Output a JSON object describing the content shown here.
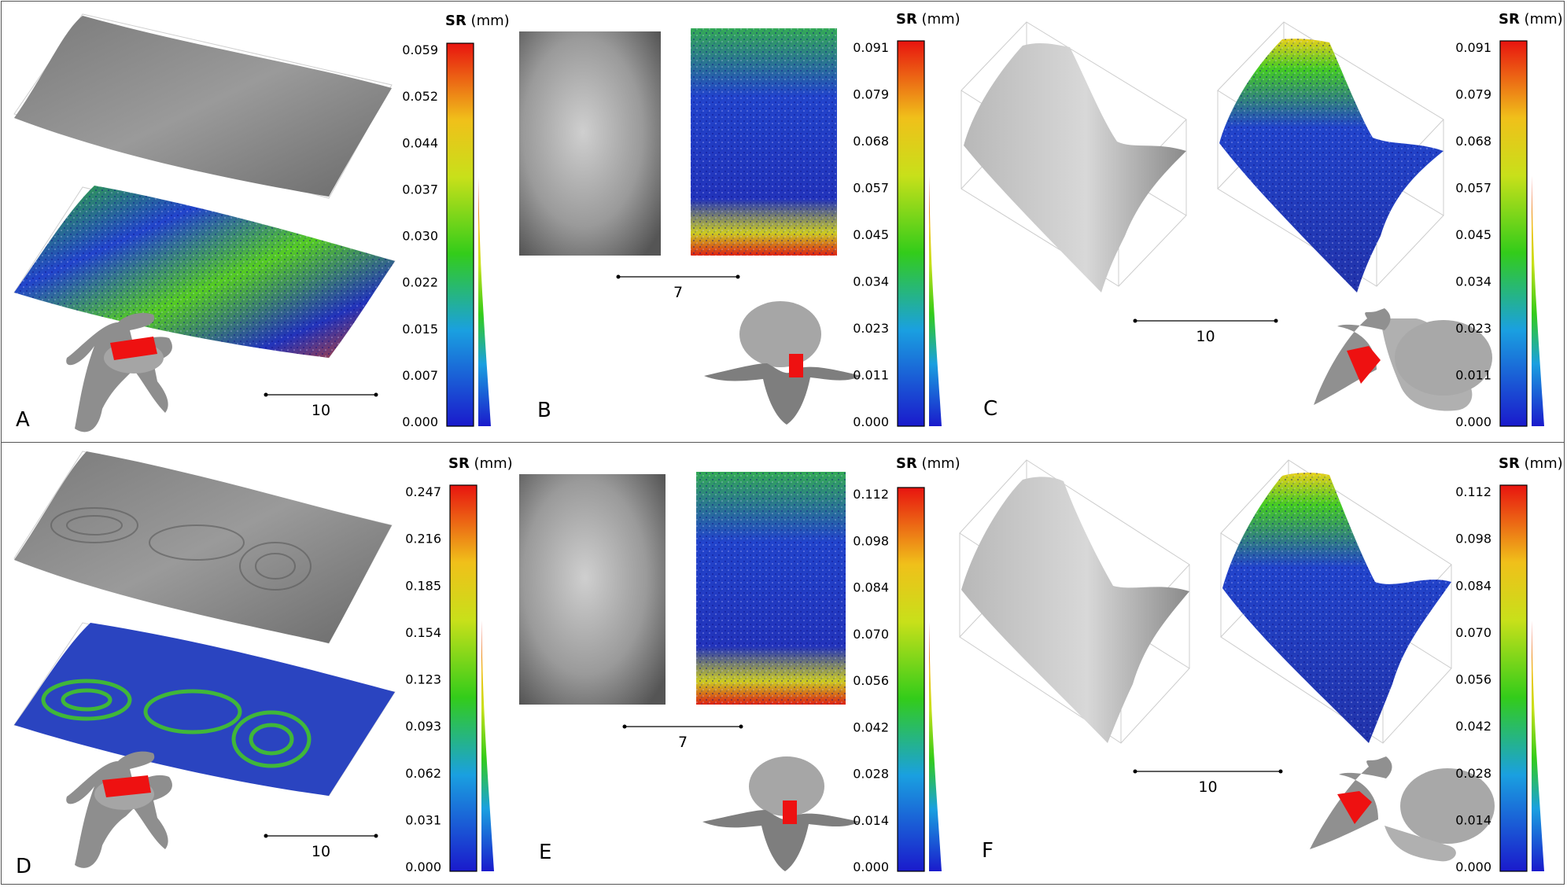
{
  "figure": {
    "panel_labels": [
      "A",
      "B",
      "C",
      "D",
      "E",
      "F"
    ],
    "colorbar_title_bold": "SR",
    "colorbar_title_unit": " (mm)",
    "scale_labels": [
      "10",
      "7",
      "10",
      "10",
      "7",
      "10"
    ],
    "colorbars": [
      {
        "panel": "A",
        "ticks": [
          "0.059",
          "0.052",
          "0.044",
          "0.037",
          "0.030",
          "0.022",
          "0.015",
          "0.007",
          "0.000"
        ]
      },
      {
        "panel": "B",
        "ticks": [
          "0.091",
          "0.079",
          "0.068",
          "0.057",
          "0.045",
          "0.034",
          "0.023",
          "0.011",
          "0.000"
        ]
      },
      {
        "panel": "C",
        "ticks": [
          "0.091",
          "0.079",
          "0.068",
          "0.057",
          "0.045",
          "0.034",
          "0.023",
          "0.011",
          "0.000"
        ]
      },
      {
        "panel": "D",
        "ticks": [
          "0.247",
          "0.216",
          "0.185",
          "0.154",
          "0.123",
          "0.093",
          "0.062",
          "0.031",
          "0.000"
        ]
      },
      {
        "panel": "E",
        "ticks": [
          "0.112",
          "0.098",
          "0.084",
          "0.070",
          "0.056",
          "0.042",
          "0.028",
          "0.014",
          "0.000"
        ]
      },
      {
        "panel": "F",
        "ticks": [
          "0.112",
          "0.098",
          "0.084",
          "0.070",
          "0.056",
          "0.042",
          "0.028",
          "0.014",
          "0.000"
        ]
      }
    ],
    "colors": {
      "scale_top": "#e8140f",
      "scale_mid": "#f0e01a",
      "scale_green": "#33cc1a",
      "scale_bottom": "#1a1acc",
      "highlight": "#ee1111",
      "bone": "#a8a8a8"
    }
  }
}
